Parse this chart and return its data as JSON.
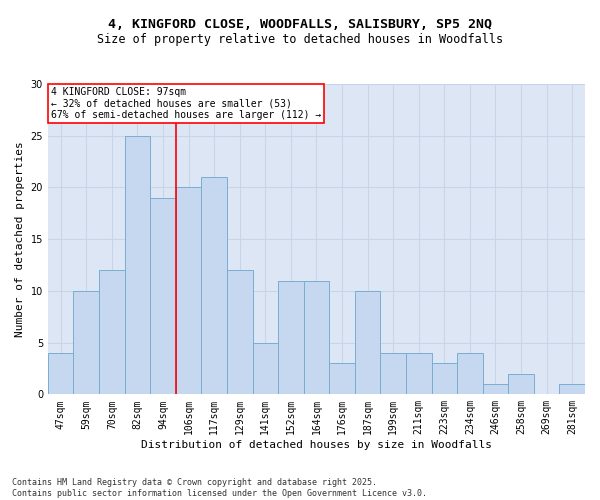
{
  "title1": "4, KINGFORD CLOSE, WOODFALLS, SALISBURY, SP5 2NQ",
  "title2": "Size of property relative to detached houses in Woodfalls",
  "xlabel": "Distribution of detached houses by size in Woodfalls",
  "ylabel": "Number of detached properties",
  "categories": [
    "47sqm",
    "59sqm",
    "70sqm",
    "82sqm",
    "94sqm",
    "106sqm",
    "117sqm",
    "129sqm",
    "141sqm",
    "152sqm",
    "164sqm",
    "176sqm",
    "187sqm",
    "199sqm",
    "211sqm",
    "223sqm",
    "234sqm",
    "246sqm",
    "258sqm",
    "269sqm",
    "281sqm"
  ],
  "values": [
    4,
    10,
    12,
    25,
    19,
    20,
    21,
    12,
    5,
    11,
    11,
    3,
    10,
    4,
    4,
    3,
    4,
    1,
    2,
    0,
    1
  ],
  "bar_color": "#c5d8f0",
  "bar_edge_color": "#7aadd4",
  "vline_index": 4,
  "vline_color": "red",
  "annotation_text": "4 KINGFORD CLOSE: 97sqm\n← 32% of detached houses are smaller (53)\n67% of semi-detached houses are larger (112) →",
  "annotation_box_color": "white",
  "annotation_box_edge": "red",
  "ylim": [
    0,
    30
  ],
  "yticks": [
    0,
    5,
    10,
    15,
    20,
    25,
    30
  ],
  "grid_color": "#c8d4e8",
  "bg_color": "#dde6f5",
  "footer1": "Contains HM Land Registry data © Crown copyright and database right 2025.",
  "footer2": "Contains public sector information licensed under the Open Government Licence v3.0.",
  "title_fontsize": 9.5,
  "subtitle_fontsize": 8.5,
  "axis_label_fontsize": 8,
  "tick_fontsize": 7,
  "annotation_fontsize": 7,
  "footer_fontsize": 6
}
